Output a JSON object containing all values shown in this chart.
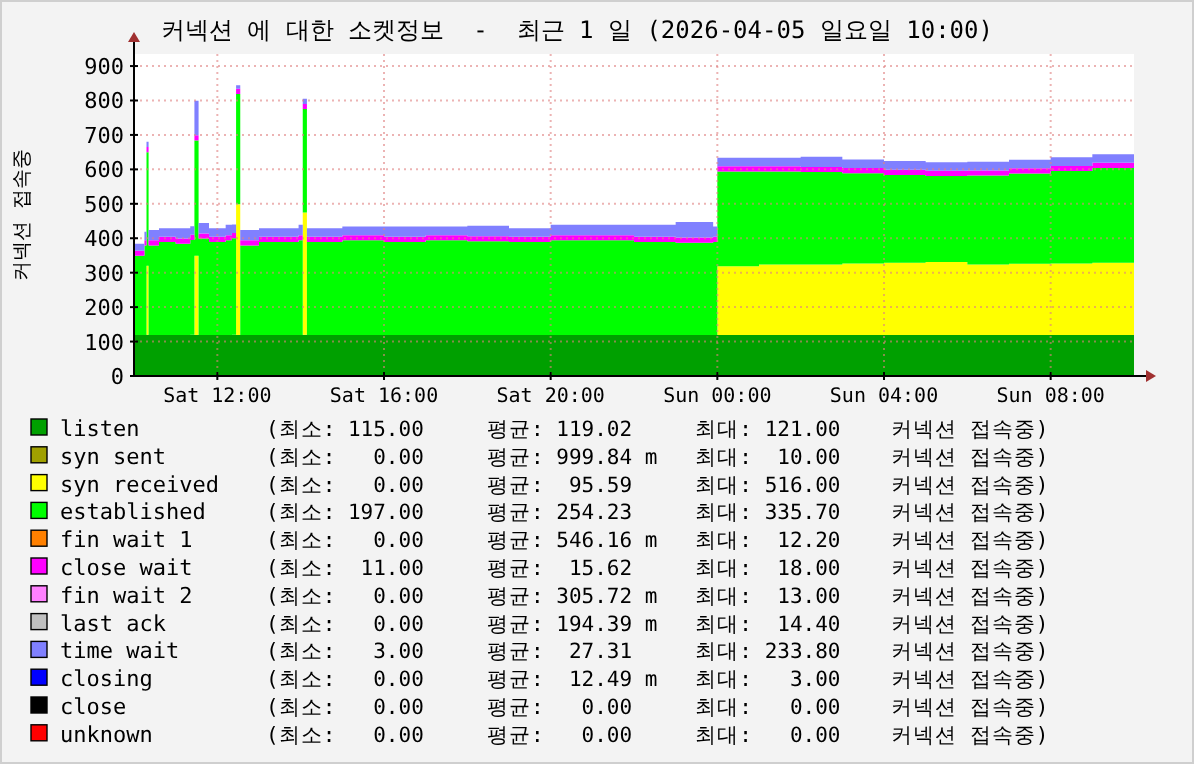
{
  "chart_data": {
    "type": "area",
    "stacked": true,
    "title": "커넥션 에 대한 소켓정보  -  최근 1 일 (2026-04-05 일요일 10:00)",
    "ylabel": "커넥션 접속중",
    "x": [
      "2026-04-04T10:00",
      "2026-04-04T10:15",
      "2026-04-04T10:18",
      "2026-04-04T10:21",
      "2026-04-04T10:36",
      "2026-04-04T11:00",
      "2026-04-04T11:21",
      "2026-04-04T11:27",
      "2026-04-04T11:33",
      "2026-04-04T11:48",
      "2026-04-04T12:12",
      "2026-04-04T12:21",
      "2026-04-04T12:27",
      "2026-04-04T12:33",
      "2026-04-04T13:00",
      "2026-04-04T13:30",
      "2026-04-04T13:57",
      "2026-04-04T14:03",
      "2026-04-04T14:09",
      "2026-04-04T15:00",
      "2026-04-04T16:00",
      "2026-04-04T17:00",
      "2026-04-04T18:00",
      "2026-04-04T19:00",
      "2026-04-04T20:00",
      "2026-04-04T21:00",
      "2026-04-04T22:00",
      "2026-04-04T23:00",
      "2026-04-04T23:54",
      "2026-04-05T00:00",
      "2026-04-05T01:00",
      "2026-04-05T02:00",
      "2026-04-05T03:00",
      "2026-04-05T04:00",
      "2026-04-05T05:00",
      "2026-04-05T06:00",
      "2026-04-05T07:00",
      "2026-04-05T08:00",
      "2026-04-05T09:00",
      "2026-04-05T10:00"
    ],
    "xlim": [
      "2026-04-04T10:00",
      "2026-04-05T10:00"
    ],
    "xticks": [
      {
        "value": "2026-04-04T12:00",
        "label": "Sat 12:00"
      },
      {
        "value": "2026-04-04T16:00",
        "label": "Sat 16:00"
      },
      {
        "value": "2026-04-04T20:00",
        "label": "Sat 20:00"
      },
      {
        "value": "2026-04-05T00:00",
        "label": "Sun 00:00"
      },
      {
        "value": "2026-04-05T04:00",
        "label": "Sun 04:00"
      },
      {
        "value": "2026-04-05T08:00",
        "label": "Sun 08:00"
      }
    ],
    "ylim": [
      0,
      935
    ],
    "yticks": [
      0,
      100,
      200,
      300,
      400,
      500,
      600,
      700,
      800,
      900
    ],
    "grid": true,
    "legend": "bottom",
    "series": [
      {
        "name": "listen",
        "color": "#00a000",
        "values": [
          119,
          119,
          120,
          119,
          119,
          119,
          120,
          119,
          119,
          119,
          119,
          120,
          119,
          119,
          119,
          119,
          119,
          120,
          119,
          119,
          119,
          119,
          119,
          119,
          119,
          119,
          119,
          119,
          119,
          119,
          119,
          119,
          119,
          119,
          119,
          119,
          119,
          119,
          119,
          119
        ]
      },
      {
        "name": "syn sent",
        "color": "#a0a000",
        "values": [
          null,
          null,
          null,
          null,
          null,
          null,
          null,
          null,
          null,
          null,
          null,
          null,
          null,
          null,
          null,
          null,
          null,
          null,
          null,
          null,
          null,
          null,
          null,
          null,
          null,
          null,
          null,
          null,
          null,
          null,
          null,
          null,
          null,
          null,
          null,
          null,
          null,
          null,
          null,
          null
        ]
      },
      {
        "name": "syn received",
        "color": "#ffff00",
        "values": [
          0,
          0,
          200,
          0,
          0,
          0,
          0,
          230,
          0,
          0,
          0,
          0,
          380,
          0,
          0,
          0,
          0,
          355,
          0,
          0,
          0,
          0,
          0,
          0,
          0,
          0,
          0,
          0,
          0,
          200,
          205,
          205,
          208,
          210,
          212,
          205,
          207,
          208,
          210,
          212
        ]
      },
      {
        "name": "established",
        "color": "#00ff00",
        "values": [
          230,
          260,
          330,
          260,
          270,
          265,
          275,
          335,
          280,
          270,
          275,
          280,
          320,
          260,
          270,
          270,
          275,
          300,
          270,
          275,
          270,
          275,
          272,
          270,
          275,
          275,
          270,
          268,
          270,
          275,
          270,
          268,
          262,
          255,
          250,
          258,
          262,
          268,
          275,
          285
        ]
      },
      {
        "name": "fin wait 1",
        "color": "#ff8000",
        "values": [
          null,
          null,
          null,
          null,
          null,
          null,
          null,
          null,
          null,
          null,
          null,
          null,
          null,
          null,
          null,
          null,
          null,
          null,
          null,
          null,
          null,
          null,
          null,
          null,
          null,
          null,
          null,
          null,
          null,
          null,
          null,
          null,
          null,
          null,
          null,
          null,
          null,
          null,
          null,
          null
        ]
      },
      {
        "name": "close wait",
        "color": "#ff00ff",
        "values": [
          15,
          15,
          15,
          15,
          15,
          15,
          15,
          15,
          15,
          15,
          15,
          15,
          15,
          15,
          15,
          15,
          15,
          15,
          15,
          15,
          15,
          15,
          15,
          15,
          15,
          15,
          15,
          15,
          15,
          15,
          15,
          15,
          15,
          15,
          15,
          15,
          15,
          15,
          15,
          15
        ]
      },
      {
        "name": "fin wait 2",
        "color": "#ff80ff",
        "values": [
          null,
          null,
          null,
          null,
          null,
          null,
          null,
          null,
          null,
          null,
          null,
          null,
          null,
          null,
          null,
          null,
          null,
          null,
          null,
          null,
          null,
          null,
          null,
          null,
          null,
          null,
          null,
          null,
          null,
          null,
          null,
          null,
          null,
          null,
          null,
          null,
          null,
          null,
          null,
          null
        ]
      },
      {
        "name": "last ack",
        "color": "#c0c0c0",
        "values": [
          null,
          null,
          null,
          null,
          null,
          null,
          null,
          null,
          null,
          null,
          null,
          null,
          null,
          null,
          null,
          null,
          null,
          null,
          null,
          null,
          null,
          null,
          null,
          null,
          null,
          null,
          null,
          null,
          null,
          null,
          null,
          null,
          null,
          null,
          null,
          null,
          null,
          null,
          null,
          null
        ]
      },
      {
        "name": "time wait",
        "color": "#8080ff",
        "values": [
          20,
          25,
          15,
          30,
          25,
          30,
          25,
          100,
          30,
          25,
          30,
          25,
          10,
          30,
          25,
          25,
          30,
          15,
          25,
          25,
          30,
          25,
          30,
          25,
          30,
          30,
          35,
          45,
          30,
          25,
          25,
          30,
          25,
          25,
          25,
          25,
          25,
          25,
          25,
          20
        ]
      },
      {
        "name": "closing",
        "color": "#0000ff",
        "values": [
          null,
          null,
          null,
          null,
          null,
          null,
          null,
          null,
          null,
          null,
          null,
          null,
          null,
          null,
          null,
          null,
          null,
          null,
          null,
          null,
          null,
          null,
          null,
          null,
          null,
          null,
          null,
          null,
          null,
          null,
          null,
          null,
          null,
          null,
          null,
          null,
          null,
          null,
          null,
          null
        ]
      },
      {
        "name": "close",
        "color": "#000000",
        "values": [
          null,
          null,
          null,
          null,
          null,
          null,
          null,
          null,
          null,
          null,
          null,
          null,
          null,
          null,
          null,
          null,
          null,
          null,
          null,
          null,
          null,
          null,
          null,
          null,
          null,
          null,
          null,
          null,
          null,
          null,
          null,
          null,
          null,
          null,
          null,
          null,
          null,
          null,
          null,
          null
        ]
      },
      {
        "name": "unknown",
        "color": "#ff0000",
        "values": [
          null,
          null,
          null,
          null,
          null,
          null,
          null,
          null,
          null,
          null,
          null,
          null,
          null,
          null,
          null,
          null,
          null,
          null,
          null,
          null,
          null,
          null,
          null,
          null,
          null,
          null,
          null,
          null,
          null,
          null,
          null,
          null,
          null,
          null,
          null,
          null,
          null,
          null,
          null,
          null
        ]
      }
    ],
    "annotations": [
      "(최소: 115.00     평균: 119.02     최대: 121.00    커넥션 접속중)",
      "(최소:   0.00     평균: 999.84 m   최대:  10.00    커넥션 접속중)",
      "(최소:   0.00     평균:  95.59     최대: 516.00    커넥션 접속중)",
      "(최소: 197.00     평균: 254.23     최대: 335.70    커넥션 접속중)",
      "(최소:   0.00     평균: 546.16 m   최대:  12.20    커넥션 접속중)",
      "(최소:  11.00     평균:  15.62     최대:  18.00    커넥션 접속중)",
      "(최소:   0.00     평균: 305.72 m   최대:  13.00    커넥션 접속중)",
      "(최소:   0.00     평균: 194.39 m   최대:  14.40    커넥션 접속중)",
      "(최소:   3.00     평균:  27.31     최대: 233.80    커넥션 접속중)",
      "(최소:   0.00     평균:  12.49 m   최대:   3.00    커넥션 접속중)",
      "(최소:   0.00     평균:   0.00     최대:   0.00    커넥션 접속중)",
      "(최소:   0.00     평균:   0.00     최대:   0.00    커넥션 접속중)"
    ]
  }
}
